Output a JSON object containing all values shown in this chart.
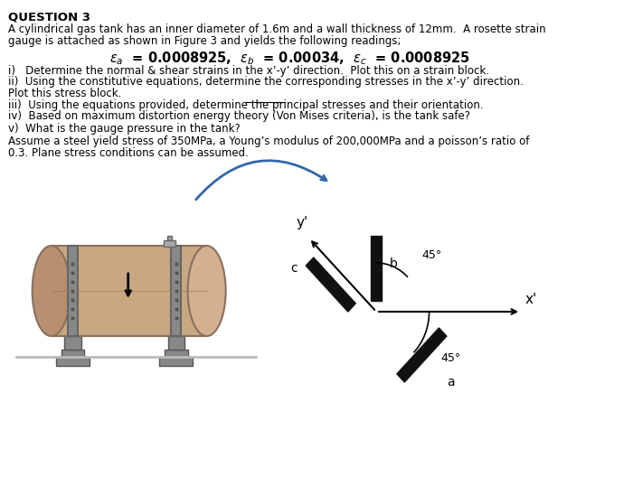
{
  "title": "QUESTION 3",
  "paragraph1": "A cylindrical gas tank has an inner diameter of 1.6m and a wall thickness of 12mm.  A rosette strain",
  "paragraph2": "gauge is attached as shown in Figure 3 and yields the following readings;",
  "item1": "i)   Determine the normal & shear strains in the x’-y’ direction.  Plot this on a strain block.",
  "item2": "ii)  Using the constitutive equations, determine the corresponding stresses in the x’-y’ direction.",
  "item2b": "Plot this stress block.",
  "item3": "iii)  Using the equations provided, determine the principal stresses and their orientation.",
  "item4": "iv)  Based on maximum distortion energy theory (Von Mises criteria), is the tank safe?",
  "item5": "v)  What is the gauge pressure in the tank?",
  "last1": "Assume a steel yield stress of 350MPa, a Young’s modulus of 200,000MPa and a poisson’s ratio of",
  "last2": "0.3. Plane stress conditions can be assumed.",
  "background": "#ffffff",
  "text_color": "#000000",
  "tank_body_color": "#c8a882",
  "tank_left_color": "#b89070",
  "tank_right_color": "#d4b090",
  "tank_edge_color": "#8a7060",
  "metal_color": "#888888",
  "metal_edge_color": "#555555",
  "arrow_color": "#3366aa",
  "gauge_color": "#111111"
}
